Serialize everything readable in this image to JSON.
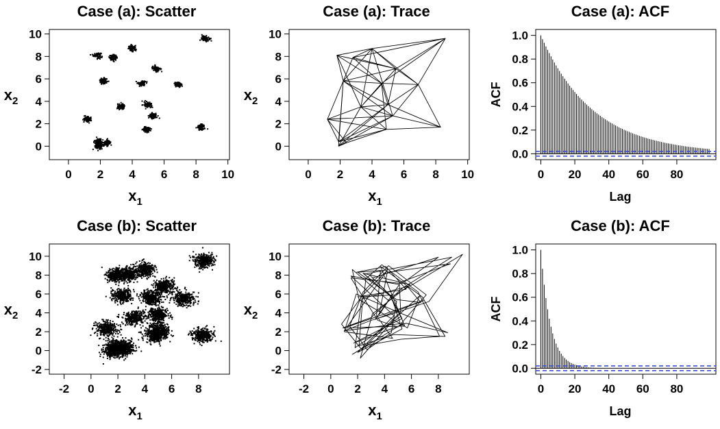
{
  "chart_data": [
    {
      "type": "scatter",
      "title": "Case (a): Scatter",
      "xlabel": "x",
      "xlabel_sub": "1",
      "ylabel": "x",
      "ylabel_sub": "2",
      "xlim": [
        -1.2,
        10.1
      ],
      "ylim": [
        -1.2,
        10.4
      ],
      "xticks": [
        0,
        2,
        4,
        6,
        8,
        10
      ],
      "yticks": [
        0,
        2,
        4,
        6,
        8,
        10
      ],
      "cluster_sd": 0.12,
      "points_per_cluster": 90,
      "clusters": [
        [
          1.8,
          8.1
        ],
        [
          2.8,
          7.9
        ],
        [
          4.0,
          8.7
        ],
        [
          8.6,
          9.6
        ],
        [
          2.2,
          5.8
        ],
        [
          4.6,
          5.6
        ],
        [
          5.5,
          6.9
        ],
        [
          6.9,
          5.5
        ],
        [
          3.3,
          3.5
        ],
        [
          5.0,
          3.7
        ],
        [
          5.3,
          2.7
        ],
        [
          1.2,
          2.4
        ],
        [
          4.9,
          1.5
        ],
        [
          8.3,
          1.7
        ],
        [
          1.9,
          0.4
        ],
        [
          2.4,
          0.3
        ],
        [
          1.9,
          0.0
        ]
      ]
    },
    {
      "type": "line",
      "title": "Case (a): Trace",
      "xlabel": "x",
      "xlabel_sub": "1",
      "ylabel": "x",
      "ylabel_sub": "2",
      "xlim": [
        -1.2,
        10.1
      ],
      "ylim": [
        -1.2,
        10.4
      ],
      "xticks": [
        0,
        2,
        4,
        6,
        8,
        10
      ],
      "yticks": [
        0,
        2,
        4,
        6,
        8,
        10
      ],
      "path": [
        [
          1.8,
          8.1
        ],
        [
          4.0,
          8.7
        ],
        [
          5.5,
          6.9
        ],
        [
          2.2,
          5.8
        ],
        [
          4.6,
          5.6
        ],
        [
          8.6,
          9.6
        ],
        [
          6.9,
          5.5
        ],
        [
          5.0,
          3.7
        ],
        [
          3.3,
          3.5
        ],
        [
          1.2,
          2.4
        ],
        [
          5.3,
          2.7
        ],
        [
          1.9,
          0.0
        ],
        [
          2.4,
          0.3
        ],
        [
          4.9,
          1.5
        ],
        [
          8.3,
          1.7
        ],
        [
          6.9,
          5.5
        ],
        [
          4.0,
          8.7
        ],
        [
          2.8,
          7.9
        ],
        [
          2.2,
          5.8
        ],
        [
          1.2,
          2.4
        ],
        [
          1.9,
          0.4
        ],
        [
          5.0,
          3.7
        ],
        [
          5.5,
          6.9
        ],
        [
          8.6,
          9.6
        ],
        [
          4.0,
          8.7
        ],
        [
          3.3,
          3.5
        ],
        [
          4.6,
          5.6
        ],
        [
          1.8,
          8.1
        ],
        [
          2.2,
          5.8
        ],
        [
          5.3,
          2.7
        ],
        [
          6.9,
          5.5
        ],
        [
          5.0,
          3.7
        ],
        [
          1.9,
          0.0
        ],
        [
          3.3,
          3.5
        ],
        [
          5.5,
          6.9
        ],
        [
          2.8,
          7.9
        ],
        [
          4.6,
          5.6
        ],
        [
          4.9,
          1.5
        ],
        [
          2.4,
          0.3
        ],
        [
          1.2,
          2.4
        ],
        [
          2.2,
          5.8
        ],
        [
          4.0,
          8.7
        ],
        [
          6.9,
          5.5
        ],
        [
          5.3,
          2.7
        ],
        [
          3.3,
          3.5
        ],
        [
          1.8,
          8.1
        ],
        [
          5.5,
          6.9
        ],
        [
          8.6,
          9.6
        ],
        [
          2.8,
          7.9
        ],
        [
          4.6,
          5.6
        ],
        [
          5.0,
          3.7
        ],
        [
          1.9,
          0.4
        ],
        [
          5.3,
          2.7
        ],
        [
          8.3,
          1.7
        ],
        [
          5.0,
          3.7
        ],
        [
          2.2,
          5.8
        ],
        [
          1.2,
          2.4
        ],
        [
          4.9,
          1.5
        ],
        [
          3.3,
          3.5
        ],
        [
          4.0,
          8.7
        ],
        [
          1.8,
          8.1
        ],
        [
          4.6,
          5.6
        ],
        [
          6.9,
          5.5
        ],
        [
          5.5,
          6.9
        ],
        [
          2.2,
          5.8
        ],
        [
          1.9,
          0.0
        ],
        [
          5.0,
          3.7
        ],
        [
          4.6,
          5.6
        ],
        [
          2.8,
          7.9
        ],
        [
          8.6,
          9.6
        ],
        [
          5.5,
          6.9
        ],
        [
          3.3,
          3.5
        ],
        [
          1.2,
          2.4
        ],
        [
          5.3,
          2.7
        ],
        [
          4.0,
          8.7
        ],
        [
          6.9,
          5.5
        ],
        [
          8.3,
          1.7
        ],
        [
          4.9,
          1.5
        ],
        [
          1.9,
          0.4
        ],
        [
          2.2,
          5.8
        ]
      ]
    },
    {
      "type": "bar",
      "title": "Case (a): ACF",
      "xlabel": "Lag",
      "ylabel": "ACF",
      "xlim": [
        -3,
        103
      ],
      "ylim": [
        -0.05,
        1.05
      ],
      "xticks": [
        0,
        20,
        40,
        60,
        80
      ],
      "yticks": [
        0.0,
        0.2,
        0.4,
        0.6,
        0.8,
        1.0
      ],
      "max_lag": 99,
      "decay_rate": 0.968,
      "conf_bound": 0.02,
      "bound_color": "#3b4fd6"
    },
    {
      "type": "scatter",
      "title": "Case (b): Scatter",
      "xlabel": "x",
      "xlabel_sub": "1",
      "ylabel": "x",
      "ylabel_sub": "2",
      "xlim": [
        -3.1,
        10.3
      ],
      "ylim": [
        -2.5,
        11.3
      ],
      "xticks": [
        -2,
        0,
        2,
        4,
        6,
        8
      ],
      "yticks": [
        -2,
        0,
        2,
        4,
        6,
        8,
        10
      ],
      "cluster_sd": 0.38,
      "points_per_cluster": 320,
      "clusters": [
        [
          1.9,
          8.0
        ],
        [
          2.8,
          8.1
        ],
        [
          4.0,
          8.6
        ],
        [
          8.4,
          9.5
        ],
        [
          2.3,
          5.8
        ],
        [
          4.5,
          5.6
        ],
        [
          5.5,
          6.8
        ],
        [
          6.9,
          5.5
        ],
        [
          3.2,
          3.5
        ],
        [
          5.0,
          3.8
        ],
        [
          5.1,
          2.2
        ],
        [
          1.2,
          2.3
        ],
        [
          4.8,
          1.6
        ],
        [
          8.3,
          1.6
        ],
        [
          2.0,
          0.4
        ],
        [
          2.5,
          0.2
        ],
        [
          1.7,
          0.0
        ]
      ]
    },
    {
      "type": "line",
      "title": "Case (b): Trace",
      "xlabel": "x",
      "xlabel_sub": "1",
      "ylabel": "x",
      "ylabel_sub": "2",
      "xlim": [
        -3.1,
        10.3
      ],
      "ylim": [
        -2.5,
        11.3
      ],
      "xticks": [
        -2,
        0,
        2,
        4,
        6,
        8
      ],
      "yticks": [
        -2,
        0,
        2,
        4,
        6,
        8,
        10
      ],
      "path": [
        [
          1.9,
          8.3
        ],
        [
          4.1,
          8.9
        ],
        [
          5.6,
          6.5
        ],
        [
          2.0,
          5.7
        ],
        [
          4.8,
          5.9
        ],
        [
          9.8,
          10.2
        ],
        [
          7.3,
          5.2
        ],
        [
          4.6,
          3.9
        ],
        [
          3.0,
          3.2
        ],
        [
          1.0,
          2.1
        ],
        [
          5.4,
          2.9
        ],
        [
          1.6,
          -0.4
        ],
        [
          2.8,
          0.6
        ],
        [
          5.2,
          1.2
        ],
        [
          8.1,
          1.5
        ],
        [
          6.5,
          6.2
        ],
        [
          3.8,
          9.1
        ],
        [
          2.6,
          7.6
        ],
        [
          2.5,
          6.1
        ],
        [
          0.8,
          2.8
        ],
        [
          2.3,
          0.1
        ],
        [
          5.2,
          4.1
        ],
        [
          5.1,
          7.2
        ],
        [
          8.9,
          9.2
        ],
        [
          4.2,
          8.3
        ],
        [
          3.6,
          3.8
        ],
        [
          4.3,
          5.3
        ],
        [
          1.6,
          8.6
        ],
        [
          2.1,
          5.4
        ],
        [
          5.7,
          2.4
        ],
        [
          6.6,
          5.8
        ],
        [
          4.7,
          3.3
        ],
        [
          2.2,
          -0.8
        ],
        [
          3.1,
          3.9
        ],
        [
          5.9,
          7.0
        ],
        [
          2.4,
          8.2
        ],
        [
          4.9,
          5.2
        ],
        [
          4.5,
          1.9
        ],
        [
          2.7,
          0.1
        ],
        [
          1.4,
          2.6
        ],
        [
          2.4,
          6.2
        ],
        [
          4.3,
          9.0
        ],
        [
          7.1,
          5.9
        ],
        [
          5.0,
          2.5
        ],
        [
          3.5,
          3.2
        ],
        [
          1.5,
          7.7
        ],
        [
          5.3,
          7.1
        ],
        [
          8.0,
          9.9
        ],
        [
          3.1,
          7.7
        ],
        [
          4.4,
          5.9
        ],
        [
          5.3,
          3.4
        ],
        [
          1.7,
          0.8
        ],
        [
          5.6,
          2.9
        ],
        [
          8.7,
          1.9
        ],
        [
          4.8,
          4.2
        ],
        [
          1.9,
          6.0
        ],
        [
          1.0,
          2.0
        ],
        [
          4.6,
          1.3
        ],
        [
          3.4,
          3.7
        ],
        [
          3.7,
          8.5
        ],
        [
          2.0,
          8.3
        ],
        [
          4.9,
          5.4
        ],
        [
          6.7,
          5.1
        ],
        [
          5.7,
          6.8
        ],
        [
          2.3,
          5.5
        ],
        [
          1.8,
          0.3
        ],
        [
          5.2,
          3.6
        ],
        [
          4.4,
          5.8
        ],
        [
          2.5,
          8.1
        ],
        [
          9.0,
          9.9
        ],
        [
          5.3,
          6.6
        ],
        [
          3.0,
          3.5
        ],
        [
          0.9,
          2.4
        ],
        [
          5.5,
          2.6
        ],
        [
          3.7,
          8.9
        ],
        [
          6.8,
          5.7
        ],
        [
          8.5,
          1.5
        ],
        [
          4.7,
          1.7
        ],
        [
          2.1,
          0.5
        ],
        [
          2.4,
          5.9
        ],
        [
          4.2,
          8.5
        ],
        [
          1.2,
          2.5
        ],
        [
          6.9,
          5.3
        ],
        [
          3.3,
          3.3
        ],
        [
          5.1,
          7.0
        ],
        [
          1.5,
          7.9
        ],
        [
          4.7,
          3.7
        ],
        [
          2.0,
          -0.2
        ],
        [
          5.3,
          2.3
        ],
        [
          4.5,
          5.7
        ],
        [
          2.9,
          8.0
        ]
      ]
    },
    {
      "type": "bar",
      "title": "Case (b): ACF",
      "xlabel": "Lag",
      "ylabel": "ACF",
      "xlim": [
        -3,
        103
      ],
      "ylim": [
        -0.05,
        1.05
      ],
      "xticks": [
        0,
        20,
        40,
        60,
        80
      ],
      "yticks": [
        0.0,
        0.2,
        0.4,
        0.6,
        0.8,
        1.0
      ],
      "max_lag": 99,
      "decay_rate": 0.84,
      "conf_bound": 0.02,
      "bound_color": "#3b4fd6"
    }
  ]
}
